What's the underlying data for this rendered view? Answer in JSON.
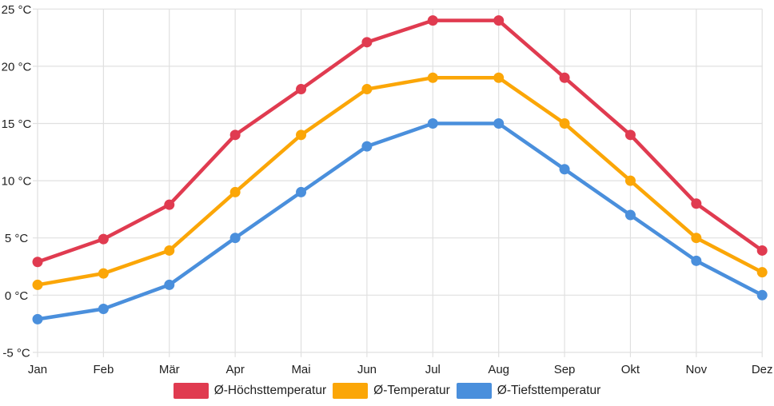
{
  "chart_data": {
    "type": "line",
    "title": "",
    "xlabel": "",
    "ylabel": "°C",
    "categories": [
      "Jan",
      "Feb",
      "Mär",
      "Apr",
      "Mai",
      "Jun",
      "Jul",
      "Aug",
      "Sep",
      "Okt",
      "Nov",
      "Dez"
    ],
    "series": [
      {
        "name": "Ø-Höchsttemperatur",
        "color": "#e03b50",
        "values": [
          2.9,
          4.9,
          7.9,
          14,
          18,
          22.1,
          24,
          24,
          19,
          14,
          8,
          3.9
        ]
      },
      {
        "name": "Ø-Temperatur",
        "color": "#fba607",
        "values": [
          0.9,
          1.9,
          3.9,
          9,
          14,
          18,
          19,
          19,
          15,
          10,
          5,
          2
        ]
      },
      {
        "name": "Ø-Tiefsttemperatur",
        "color": "#4a8fdc",
        "values": [
          -2.1,
          -1.2,
          0.9,
          5,
          9,
          13,
          15,
          15,
          11,
          7,
          3,
          0
        ]
      }
    ],
    "yticks": [
      25,
      20,
      15,
      10,
      5,
      0,
      -5
    ],
    "ytick_labels": [
      "25 °C",
      "20 °C",
      "15 °C",
      "10 °C",
      "5 °C",
      "0 °C",
      "-5 °C"
    ],
    "ylim": [
      -5,
      25
    ],
    "grid": true,
    "legend_position": "bottom"
  },
  "colors": {
    "background": "#ffffff",
    "grid": "#e0e0e0",
    "axis_text": "#212121"
  }
}
